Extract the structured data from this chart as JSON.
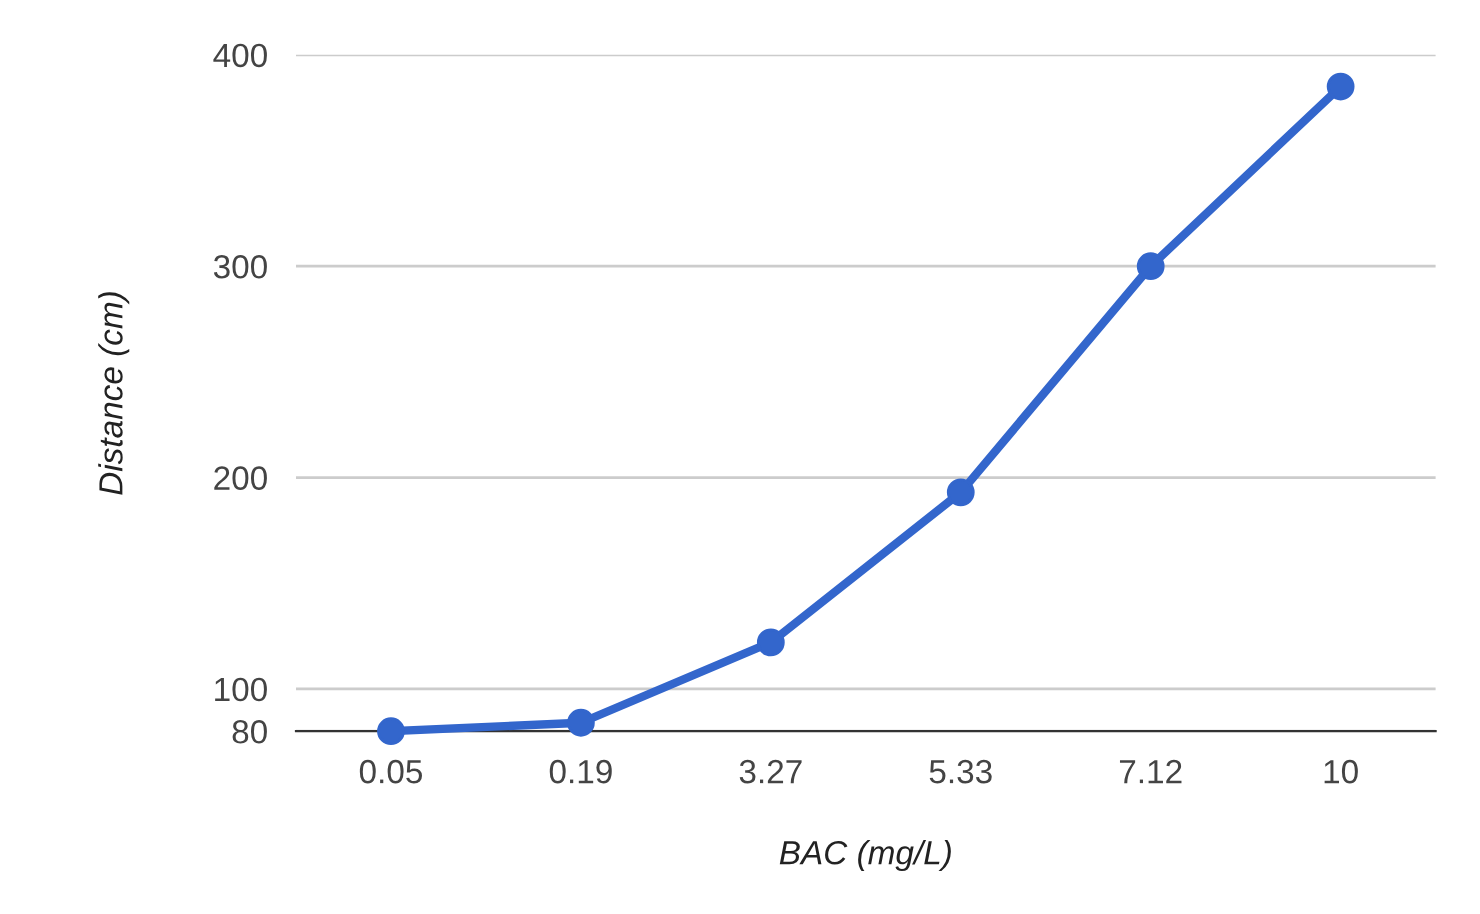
{
  "chart_data": {
    "type": "line",
    "xlabel": "BAC (mg/L)",
    "ylabel": "Distance (cm)",
    "categories": [
      "0.05",
      "0.19",
      "3.27",
      "5.33",
      "7.12",
      "10"
    ],
    "series": [
      {
        "color": "#3366cc",
        "values": [
          80,
          84,
          122,
          193,
          300,
          385
        ]
      }
    ],
    "ylim": [
      80,
      400
    ],
    "yticks": [
      80,
      100,
      200,
      300,
      400
    ],
    "grid": "y",
    "marker": "circle",
    "line_style": "solid"
  }
}
